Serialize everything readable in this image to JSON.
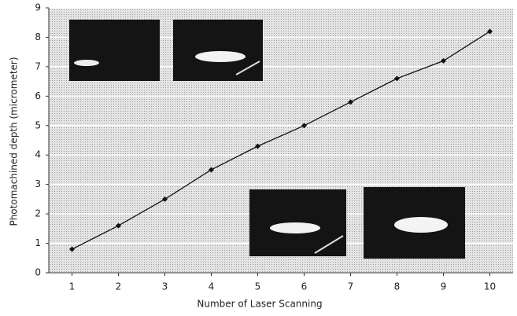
{
  "chart_data": {
    "type": "line",
    "x_label": "Number of Laser Scanning",
    "y_label": "Photomachined depth (micrometer)",
    "x": [
      1,
      2,
      3,
      4,
      5,
      6,
      7,
      8,
      9,
      10
    ],
    "series": [
      {
        "color": "#111111",
        "values": [
          0.8,
          1.6,
          2.5,
          3.5,
          4.3,
          5.0,
          5.8,
          6.6,
          7.2,
          8.2
        ]
      }
    ],
    "xlim": [
      0.5,
      10.5
    ],
    "xticks": [
      1,
      2,
      3,
      4,
      5,
      6,
      7,
      8,
      9,
      10
    ],
    "ylim": [
      0,
      9
    ],
    "yticks": [
      0,
      1,
      2,
      3,
      4,
      5,
      6,
      7,
      8,
      9
    ],
    "grid": true
  }
}
